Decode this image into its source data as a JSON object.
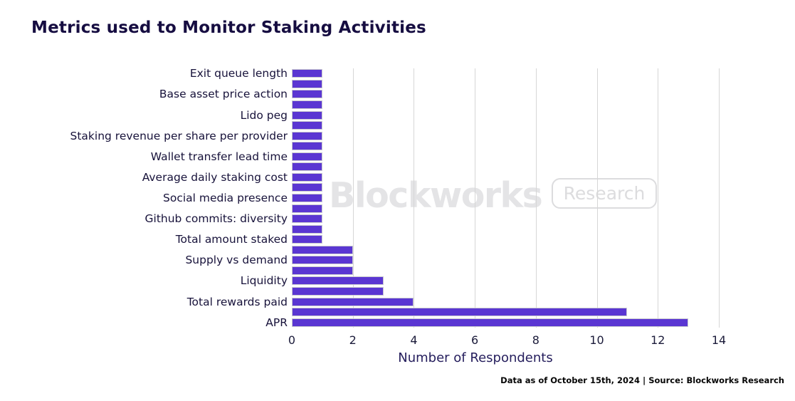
{
  "page": {
    "title": "Metrics used to Monitor Staking Activities"
  },
  "watermark": {
    "brand": "Blockworks",
    "badge": "Research"
  },
  "footer": {
    "text": "Data as of October 15th, 2024 | Source: Blockworks Research"
  },
  "chart_data": {
    "type": "bar",
    "orientation": "horizontal",
    "title": "Metrics used to Monitor Staking Activities",
    "xlabel": "Number of Respondents",
    "xlim": [
      0,
      14
    ],
    "x_ticks": [
      0,
      2,
      4,
      6,
      8,
      10,
      12,
      14
    ],
    "grid": "vertical light-gray lines at even ticks",
    "legend": "none",
    "bar_color": "#5a36d2",
    "categories": [
      "Exit queue length",
      "Base asset price action",
      "Lido peg",
      "Staking revenue per share per provider",
      "Wallet transfer lead time",
      "Average daily staking cost",
      "Social media presence",
      "Github commits: diversity",
      "Total amount staked",
      "Supply vs demand",
      "Liquidity",
      "Total rewards paid",
      "APR"
    ],
    "values": [
      1,
      1,
      1,
      1,
      1,
      1,
      1,
      1,
      1,
      2,
      3,
      4,
      13
    ],
    "note": "Chart renders 25 bars top-to-bottom; axis labels are shown only for every other bar, intermediate bars are unlabeled.",
    "bars": [
      {
        "label": "Exit queue length",
        "value": 1
      },
      {
        "label": "",
        "value": 1
      },
      {
        "label": "Base asset price action",
        "value": 1
      },
      {
        "label": "",
        "value": 1
      },
      {
        "label": "Lido peg",
        "value": 1
      },
      {
        "label": "",
        "value": 1
      },
      {
        "label": "Staking revenue per share per provider",
        "value": 1
      },
      {
        "label": "",
        "value": 1
      },
      {
        "label": "Wallet transfer lead time",
        "value": 1
      },
      {
        "label": "",
        "value": 1
      },
      {
        "label": "Average daily staking cost",
        "value": 1
      },
      {
        "label": "",
        "value": 1
      },
      {
        "label": "Social media presence",
        "value": 1
      },
      {
        "label": "",
        "value": 1
      },
      {
        "label": "Github commits: diversity",
        "value": 1
      },
      {
        "label": "",
        "value": 1
      },
      {
        "label": "Total amount staked",
        "value": 1
      },
      {
        "label": "",
        "value": 2
      },
      {
        "label": "Supply vs demand",
        "value": 2
      },
      {
        "label": "",
        "value": 2
      },
      {
        "label": "Liquidity",
        "value": 3
      },
      {
        "label": "",
        "value": 3
      },
      {
        "label": "Total rewards paid",
        "value": 4
      },
      {
        "label": "",
        "value": 11
      },
      {
        "label": "APR",
        "value": 13
      }
    ]
  }
}
